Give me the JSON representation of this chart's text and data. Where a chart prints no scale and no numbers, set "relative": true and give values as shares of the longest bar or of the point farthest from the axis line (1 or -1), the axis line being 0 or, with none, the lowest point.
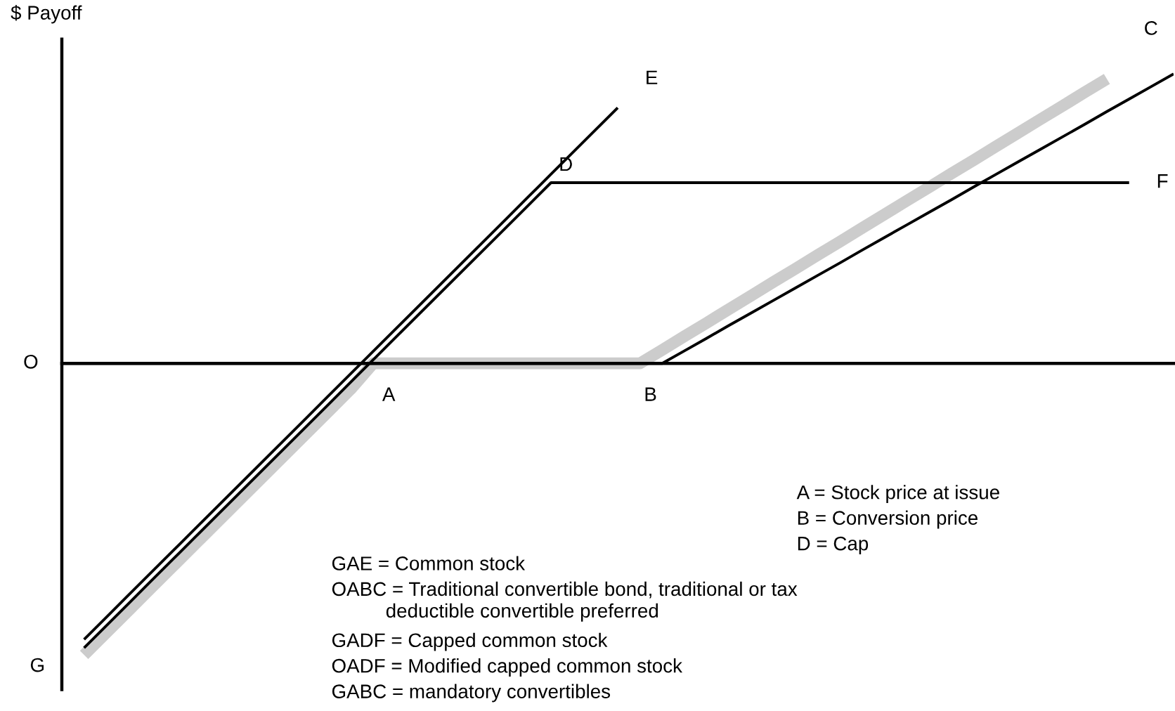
{
  "chart_data": {
    "type": "line",
    "relative": true,
    "ylabel": "$ Payoff",
    "marker": "none",
    "line_style": "solid",
    "categories": [
      null,
      null,
      null,
      null,
      null,
      null,
      null,
      null,
      null,
      null,
      null,
      null,
      null,
      null,
      null,
      null,
      null,
      null,
      null,
      null,
      null,
      null,
      null,
      null,
      null,
      null,
      null,
      null,
      null,
      null,
      null,
      null,
      null,
      null,
      null,
      null,
      null,
      null,
      null,
      null,
      null,
      null,
      null,
      null,
      null,
      null,
      null,
      null,
      null,
      null,
      null
    ],
    "series": [
      {
        "color": "#cccccc",
        "values": [
          null,
          -1.0,
          -0.924,
          -0.848,
          -0.772,
          -0.696,
          -0.62,
          -0.544,
          -0.468,
          -0.392,
          -0.316,
          -0.24,
          -0.164,
          -0.088,
          0,
          0,
          0,
          0,
          0,
          0,
          0,
          0,
          0,
          0,
          0,
          0,
          0,
          0.046,
          0.093,
          0.139,
          0.186,
          0.232,
          0.279,
          0.325,
          0.372,
          0.418,
          0.465,
          0.511,
          0.558,
          0.604,
          0.651,
          0.697,
          0.744,
          0.79,
          0.837,
          0.883,
          0.93,
          0.976,
          null,
          null,
          null
        ]
      },
      {
        "color": "#000000",
        "values": [
          null,
          -0.947,
          -0.871,
          -0.795,
          -0.719,
          -0.643,
          -0.567,
          -0.491,
          -0.415,
          -0.339,
          -0.263,
          -0.187,
          -0.111,
          -0.035,
          0.041,
          0.117,
          0.193,
          0.269,
          0.345,
          0.421,
          0.497,
          0.573,
          0.649,
          0.725,
          0.801,
          0.877,
          null,
          null,
          null,
          null,
          null,
          null,
          null,
          null,
          null,
          null,
          null,
          null,
          null,
          null,
          null,
          null,
          null,
          null,
          null,
          null,
          null,
          null,
          null,
          null,
          null
        ]
      },
      {
        "color": "#000000",
        "values": [
          null,
          -0.976,
          -0.9,
          -0.824,
          -0.748,
          -0.672,
          -0.596,
          -0.52,
          -0.444,
          -0.368,
          -0.292,
          -0.216,
          -0.14,
          -0.064,
          0.012,
          0.088,
          0.164,
          0.24,
          0.316,
          0.392,
          0.468,
          0.544,
          0.62,
          0.62,
          0.62,
          0.62,
          0.62,
          0.62,
          0.62,
          0.62,
          0.62,
          0.62,
          0.62,
          0.62,
          0.62,
          0.62,
          0.62,
          0.62,
          0.62,
          0.62,
          0.62,
          0.62,
          0.62,
          0.62,
          0.62,
          0.62,
          0.62,
          0.62,
          0.62,
          null,
          null
        ]
      },
      {
        "color": "#000000",
        "values": [
          0,
          0,
          0,
          0,
          0,
          0,
          0,
          0,
          0,
          0,
          0,
          0,
          0,
          0,
          0,
          0,
          0,
          0,
          0,
          0,
          0,
          0,
          0,
          0,
          0,
          0,
          0,
          0,
          0.043,
          0.086,
          0.13,
          0.173,
          0.216,
          0.259,
          0.302,
          0.345,
          0.389,
          0.432,
          0.475,
          0.518,
          0.561,
          0.605,
          0.648,
          0.691,
          0.734,
          0.777,
          0.82,
          0.864,
          0.907,
          0.95,
          0.993
        ]
      }
    ],
    "annotations": [
      "O",
      "A",
      "B",
      "C",
      "D",
      "E",
      "F",
      "G",
      "A = Stock price at issue",
      "B = Conversion price",
      "D = Cap",
      "GAE = Common stock",
      "OABC = Traditional convertible bond, traditional or tax\n          deductible convertible preferred",
      "GADF = Capped common stock",
      "OADF = Modified capped common stock",
      "GABC = mandatory convertibles"
    ]
  }
}
